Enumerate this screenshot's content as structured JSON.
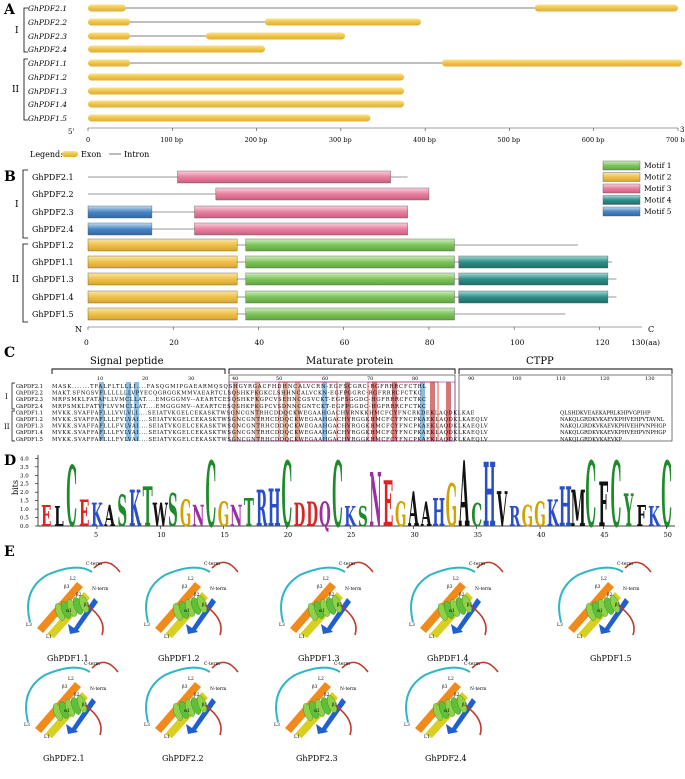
{
  "panels": {
    "A": {
      "label": "A",
      "group1_label": "I",
      "group2_label": "II",
      "genes": [
        "GhPDF2.1",
        "GhPDF2.2",
        "GhPDF2.3",
        "GhPDF2.4",
        "GhPDF1.1",
        "GhPDF1.2",
        "GhPDF1.3",
        "GhPDF1.4",
        "GhPDF1.5"
      ],
      "exons_bp": [
        [
          [
            0,
            45
          ],
          [
            530,
            700
          ]
        ],
        [
          [
            0,
            50
          ],
          [
            210,
            395
          ]
        ],
        [
          [
            0,
            50
          ],
          [
            140,
            305
          ]
        ],
        [
          [
            0,
            210
          ]
        ],
        [
          [
            0,
            50
          ],
          [
            420,
            705
          ]
        ],
        [
          [
            0,
            375
          ]
        ],
        [
          [
            0,
            375
          ]
        ],
        [
          [
            0,
            375
          ]
        ],
        [
          [
            0,
            335
          ]
        ]
      ],
      "axis_start": "5'",
      "axis_end": "3'",
      "ticks": [
        "0",
        "100 bp",
        "200 bp",
        "300 bp",
        "400 bp",
        "500 bp",
        "600 bp",
        "700 bp"
      ],
      "legend_title": "Legend:",
      "legend_exon": "Exon",
      "legend_intron": "Intron"
    },
    "B": {
      "label": "B",
      "group1_label": "I",
      "group2_label": "II",
      "genes": [
        "GhPDF2.1",
        "GhPDF2.2",
        "GhPDF2.3",
        "GhPDF2.4",
        "GhPDF1.2",
        "GhPDF1.1",
        "GhPDF1.3",
        "GhPDF1.4",
        "GhPDF1.5"
      ],
      "lengths_aa": [
        75,
        80,
        75,
        75,
        115,
        123,
        124,
        124,
        112
      ],
      "motifs": [
        [
          [
            3,
            21,
            71
          ]
        ],
        [
          [
            3,
            30,
            80
          ]
        ],
        [
          [
            5,
            0,
            15
          ],
          [
            3,
            25,
            75
          ]
        ],
        [
          [
            5,
            0,
            15
          ],
          [
            3,
            25,
            75
          ]
        ],
        [
          [
            2,
            0,
            35
          ],
          [
            1,
            37,
            86
          ]
        ],
        [
          [
            2,
            0,
            35
          ],
          [
            1,
            37,
            86
          ],
          [
            4,
            87,
            122
          ]
        ],
        [
          [
            2,
            0,
            35
          ],
          [
            1,
            37,
            86
          ],
          [
            4,
            87,
            122
          ]
        ],
        [
          [
            2,
            0,
            35
          ],
          [
            1,
            37,
            86
          ],
          [
            4,
            87,
            122
          ]
        ],
        [
          [
            2,
            0,
            35
          ],
          [
            1,
            37,
            86
          ]
        ]
      ],
      "legend": [
        "Motif 1",
        "Motif 2",
        "Motif 3",
        "Motif 4",
        "Motif 5"
      ],
      "motif_colors": [
        "#7ec35a",
        "#eec14a",
        "#e97fa0",
        "#2f8f8a",
        "#4a86c4"
      ],
      "axis_n": "N",
      "axis_c": "C",
      "ticks": [
        "0",
        "20",
        "40",
        "60",
        "80",
        "100",
        "120"
      ],
      "tick_values": [
        0,
        20,
        40,
        60,
        80,
        100,
        120
      ],
      "axis_end_label": "130(aa)",
      "axis_max": 130
    },
    "C": {
      "label": "C",
      "sections": [
        "Signal peptide",
        "Maturate protein",
        "CTPP"
      ],
      "group1_label": "I",
      "group2_label": "II",
      "pos_ticks_1": [
        "10",
        "20",
        "30"
      ],
      "pos_ticks_2": [
        "40",
        "50",
        "60",
        "70",
        "80"
      ],
      "pos_ticks_3": [
        "90",
        "100",
        "110",
        "120",
        "130"
      ],
      "rows": [
        {
          "name": "GhPDF2.1",
          "seq": "MASK.......TFALFLTLLLI....FASQGMIPGAEARMQSQSHGYRGACFHDHNCALVCRN-EGFSCGRC-RGFRRRCFCTRL"
        },
        {
          "name": "GhPDF2.2",
          "seq": "MAKT.SFNGSVFLLLLLLLVPYECQGRGGKMMVAEARTCLSQSHKFKGKCLSHHNCALVCKN-EGFPGGRC-RGFRRRCFCTKC"
        },
        {
          "name": "GhPDF2.3",
          "seq": "MRPSMKLFATAFLLVMCLLAT....EMGGGMV--AEARTCESQSHKFKGPCVSEHNCGSVCKT-EGFSGGDC-HGFRRRCFCTKC"
        },
        {
          "name": "GhPDF2.4",
          "seq": "MRPSMKLFATVFLVVMCLLAT....EMGGGMV--AEARTCESQSHKFKGPCVSDNNCGNTCKT-EGFPGGDC-HGFRRRCFCTKC"
        },
        {
          "name": "GhPDF1.1",
          "seq": "MVKK.SVAFFAFLLLVVLVLI....SEIATVKGELCEKASKTWSGNCGNTRHCDDQCKWEGAAHGACHVRNKKHMCFCYFNCRKDEKLAQDKLKAE"
        },
        {
          "name": "GhPDF1.2",
          "seq": "MVKK.SVAFFAFLLLFVLVAI....SEIATVKGELCEKASKTWSGNCGNTRHCDDQCKWEGAAHGACHVRGGKHMCFCYFNCPKAEKLAQDKLKAEQLV"
        },
        {
          "name": "GhPDF1.3",
          "seq": "MVKK.SVAFFAFLLLFVLVAI....SEIATVKGELCEKASKTWSGNCGNTRHCDDQCKWEGAAHGACHVRGGKHMCFCYFNCPKAEKLAQDKLKAEQLV"
        },
        {
          "name": "GhPDF1.4",
          "seq": "MVKK.SVAFFAFLLLFVLVAI....SEIATVKGELCEKASKTWSGNCGNTRHCDDQCKWEGAAHGACHVRGGKHMCFCYFNCPKAEKLAQDKLKAEQLV"
        },
        {
          "name": "GhPDF1.5",
          "seq": "MVKK.SVAFFAFLLLFVLVAI....SEIATVKGELCEKASKTWSGNCGNTRHCDDQCKWEGAAHGACHVRGGKHMCFCYFNCPKAEKLAQDKLKAEQLV"
        }
      ],
      "tail_rows": [
        "QLSHDKVEAEKAPRLKHPVGPIHP",
        "NAKQLGRDKVKAEVKPHVEHPVTAVNL",
        "NAKQLGRDKVKAEVKPHVEHPVNPHGP",
        "NAKQLGRDKVKAEVKPHVEHPVNPHGP",
        "NAKQLGRDKVKAEVKP"
      ]
    },
    "D": {
      "label": "D",
      "ylabel": "bits",
      "yticks": [
        "0.0",
        "0.5",
        "1.0",
        "1.5",
        "2.0",
        "2.5",
        "3.0",
        "3.5",
        "4.0"
      ],
      "ytick_values": [
        0,
        0.5,
        1,
        1.5,
        2,
        2.5,
        3,
        3.5,
        4
      ],
      "ymax": 4.2,
      "xticks": [
        "5",
        "10",
        "15",
        "20",
        "25",
        "30",
        "35",
        "40",
        "45",
        "50"
      ],
      "xtick_values": [
        5,
        10,
        15,
        20,
        25,
        30,
        35,
        40,
        45,
        50
      ],
      "consensus": "ELCEKASKTWSGNCGNTRHCDDQCKSNEGAAHGACHVRGGKHMCFCYFKC",
      "heights": [
        1.3,
        1.2,
        3.7,
        1.6,
        1.4,
        1.3,
        1.9,
        2.2,
        2.4,
        1.4,
        2.0,
        1.6,
        1.3,
        4.0,
        1.5,
        1.3,
        1.7,
        2.2,
        2.3,
        4.0,
        1.4,
        1.5,
        1.5,
        4.0,
        1.2,
        1.2,
        3.3,
        2.8,
        1.5,
        2.1,
        1.5,
        1.7,
        2.6,
        4.0,
        1.4,
        3.9,
        2.1,
        1.2,
        1.3,
        1.5,
        1.6,
        2.4,
        2.2,
        4.0,
        2.7,
        4.0,
        2.0,
        1.3,
        1.2,
        4.0
      ]
    },
    "E": {
      "label": "E",
      "structures": [
        "GhPDF1.1",
        "GhPDF1.2",
        "GhPDF1.3",
        "GhPDF1.4",
        "GhPDF1.5",
        "GhPDF2.1",
        "GhPDF2.2",
        "GhPDF2.3",
        "GhPDF2.4"
      ],
      "annot_n": "N-term",
      "annot_c": "C-term",
      "annot_beta1": "β1",
      "annot_beta2": "β2",
      "annot_beta3": "β3",
      "annot_alpha": "α1",
      "annot_l1": "L1",
      "annot_l2": "L2",
      "annot_l3": "L3"
    }
  }
}
